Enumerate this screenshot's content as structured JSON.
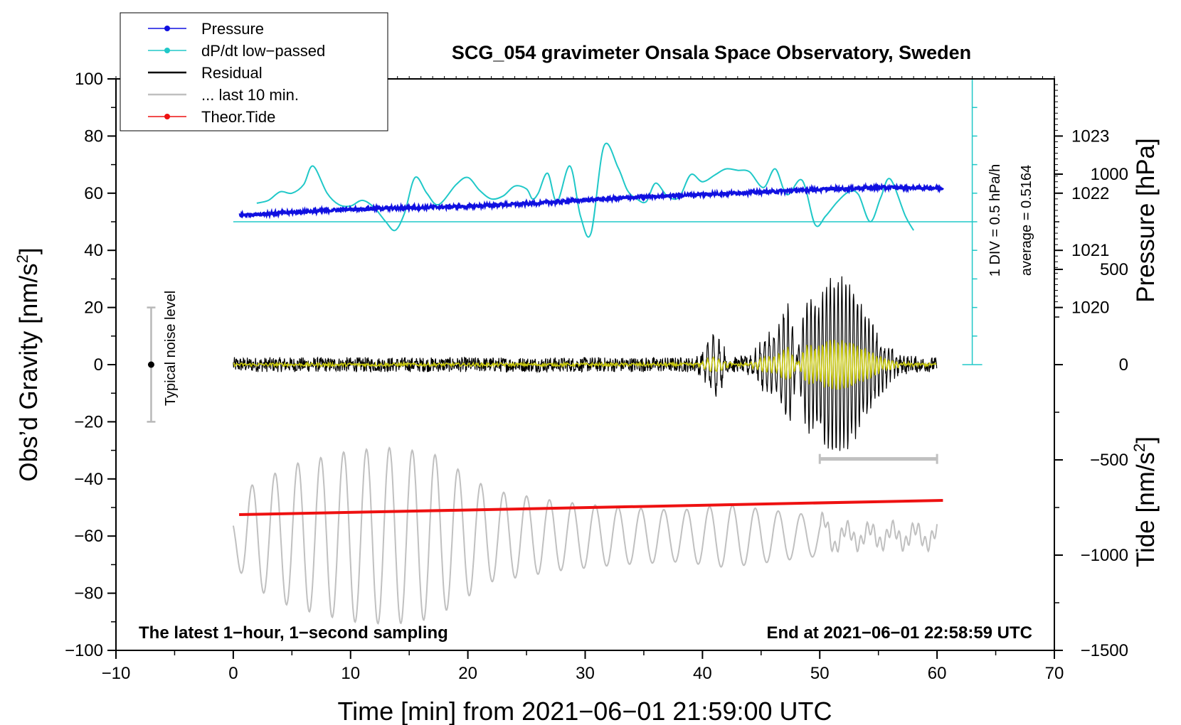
{
  "chart_data": {
    "type": "line",
    "title": "SCG_054 gravimeter Onsala Space Observatory, Sweden",
    "xlabel": "Time [min] from 2021−06−01 21:59:00 UTC",
    "ylabel_main": "Obs’d Gravity [nm/s",
    "ylabel_main_sup": "2",
    "ylabel_main_end": "]",
    "ylabel_pressure": "Pressure [hPa]",
    "ylabel_tide": "Tide [nm/s",
    "ylabel_tide_sup": "2",
    "ylabel_tide_end": "]",
    "xlim": [
      -10,
      70
    ],
    "ylim": [
      -100,
      100
    ],
    "x_ticks": [
      -10,
      0,
      10,
      20,
      30,
      40,
      50,
      60,
      70
    ],
    "x_tick_labels": [
      "−10",
      "0",
      "10",
      "20",
      "30",
      "40",
      "50",
      "60",
      "70"
    ],
    "y_ticks": [
      100,
      80,
      60,
      40,
      20,
      0,
      -20,
      -40,
      -60,
      -80,
      -100
    ],
    "y_tick_labels": [
      "100",
      "80",
      "60",
      "40",
      "20",
      "0",
      "−20",
      "−40",
      "−60",
      "−80",
      "−100"
    ],
    "pressure_ticks": [
      1020,
      1021,
      1022,
      1023
    ],
    "pressure_tick_labels": [
      "1020",
      "1021",
      "1022",
      "1023"
    ],
    "pressure_axis_map": {
      "hpa_at_gravity_20": 1020,
      "gravity_per_hpa": 20
    },
    "tide_ticks": [
      1000,
      500,
      0,
      -500,
      -1000,
      -1500
    ],
    "tide_tick_labels": [
      "1000",
      "500",
      "0",
      "−500",
      "−1000",
      "−1500"
    ],
    "tide_axis_map": {
      "tide_at_gravity_minus100": -1500,
      "gravity_per_tide": 0.0666667
    },
    "legend": [
      {
        "label": "Pressure",
        "color": "#1010e0",
        "marker": true
      },
      {
        "label": "dP/dt low−passed",
        "color": "#20c8c8",
        "marker": true
      },
      {
        "label": "Residual",
        "color": "#000000",
        "marker": false
      },
      {
        "label": "... last 10 min.",
        "color": "#c0c0c0",
        "marker": false
      },
      {
        "label": "Theor.Tide",
        "color": "#ee1111",
        "marker": true
      }
    ],
    "annotations": {
      "bottom_left": "The latest 1−hour, 1−second sampling",
      "bottom_right": "End at 2021−06−01 22:58:59 UTC",
      "noise_label": "Typical noise level",
      "dpdt_scale": "1 DIV = 0.5 hPa/h",
      "dpdt_average": "average = 0.5164"
    },
    "noise_bar": {
      "x": -7,
      "y_center": 0,
      "y_low": -20,
      "y_high": 20
    },
    "last10_bar": {
      "x_start": 50,
      "x_end": 60,
      "y": -33
    },
    "dpdt_scale_axis": {
      "x": 63,
      "y_bottom": 0,
      "y_top": 100,
      "divisions": 10,
      "baseline_y": 50
    },
    "series": [
      {
        "name": "Pressure",
        "color": "#1010e0",
        "x": [
          0.5,
          5,
          10,
          15,
          20,
          25,
          30,
          35,
          40,
          45,
          50,
          55,
          60.5
        ],
        "values": [
          52.3,
          53.3,
          54.4,
          54.9,
          55.4,
          56.3,
          57.6,
          58.7,
          59.6,
          60.4,
          61.3,
          62.0,
          61.8
        ]
      },
      {
        "name": "dP/dt low-passed",
        "color": "#20c8c8",
        "x": [
          2,
          3,
          4,
          5,
          6,
          6.8,
          8,
          9,
          10,
          11,
          12,
          13,
          13.8,
          14.6,
          15.5,
          16.5,
          17.5,
          19,
          20,
          21,
          22,
          23,
          24,
          25,
          25.5,
          26,
          26.8,
          27.6,
          28.7,
          29.6,
          30.5,
          31.6,
          32.8,
          33.6,
          34.4,
          35.2,
          36,
          37,
          38,
          39,
          40,
          41.1,
          42,
          43,
          44,
          45.2,
          46.2,
          47.2,
          48.5,
          49.6,
          50.5,
          51.5,
          52.5,
          53.3,
          54.3,
          55.2,
          56,
          57.3,
          58
        ],
        "values": [
          56.5,
          57.5,
          60.5,
          60,
          63,
          69.5,
          60,
          56,
          55.5,
          57.5,
          55,
          50,
          47,
          53,
          65.5,
          60,
          56,
          63,
          65.5,
          61,
          58,
          59,
          62.5,
          61.5,
          58,
          60,
          67,
          57,
          69.5,
          52,
          46,
          76.5,
          69,
          61,
          58,
          57,
          63.5,
          59,
          58.5,
          66.5,
          64,
          66.5,
          68.5,
          68,
          67.5,
          62,
          68.5,
          59.5,
          64.5,
          49,
          52,
          57,
          60.5,
          59.5,
          50,
          58.5,
          65,
          52,
          47
        ]
      },
      {
        "name": "Theor.Tide",
        "color": "#ee1111",
        "x": [
          0.5,
          60.5
        ],
        "values": [
          -52.5,
          -47.5
        ]
      }
    ],
    "residual_model": {
      "x_start": 0,
      "x_end": 60,
      "step": 0.0333,
      "noise_amplitude": 2.6,
      "bursts": [
        {
          "center": 41,
          "width": 1.0,
          "amplitude": 9,
          "period": 0.48
        },
        {
          "center": 51.5,
          "width": 3.3,
          "amplitude": 30,
          "period": 0.33
        },
        {
          "center": 47,
          "width": 2.2,
          "amplitude": 14,
          "period": 0.4
        }
      ]
    },
    "last10_model": {
      "x_start": 0,
      "x_end": 60,
      "period": 1.95,
      "offset": -60,
      "amplitude_points": [
        [
          0,
          8
        ],
        [
          1.2,
          17
        ],
        [
          5,
          25
        ],
        [
          10,
          30
        ],
        [
          13.5,
          31
        ],
        [
          17,
          29
        ],
        [
          22,
          16
        ],
        [
          28,
          12
        ],
        [
          33,
          10
        ],
        [
          38,
          9
        ],
        [
          42,
          11
        ],
        [
          46,
          9
        ],
        [
          50,
          7
        ],
        [
          52,
          3
        ],
        [
          60,
          3
        ]
      ]
    }
  }
}
